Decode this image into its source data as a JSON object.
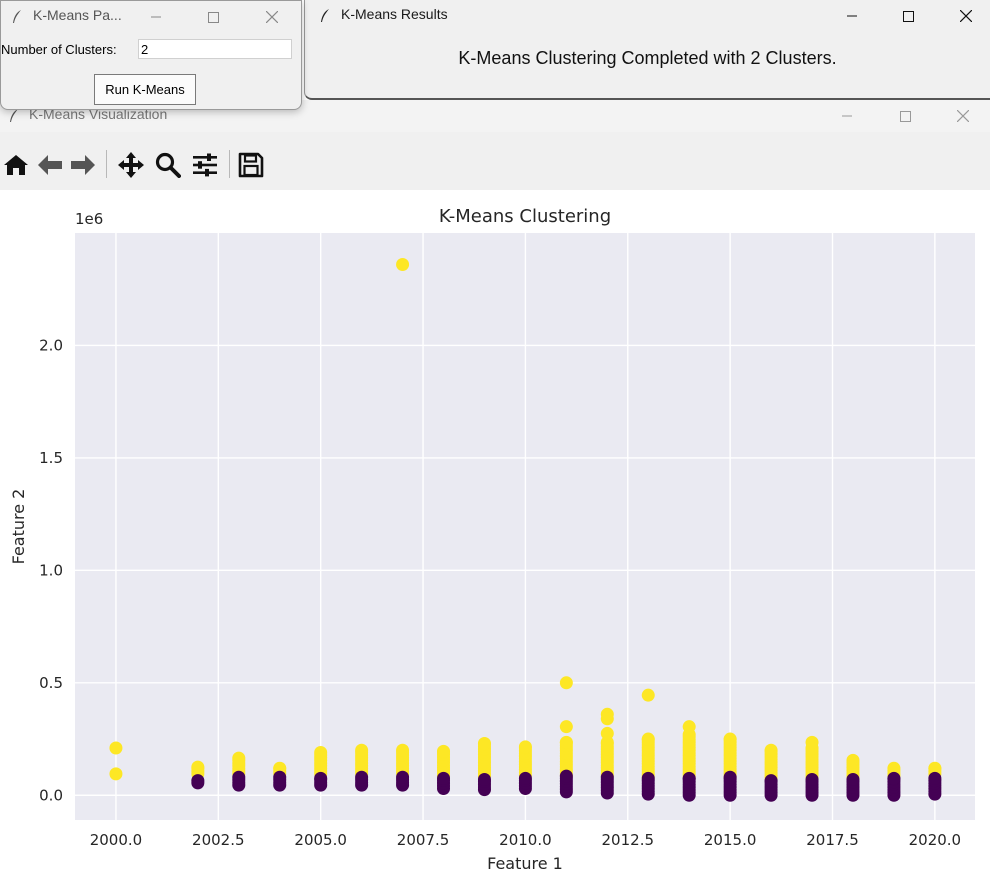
{
  "params_window": {
    "title": "K-Means Pa...",
    "clusters_label": "Number of Clusters:",
    "clusters_value": "2",
    "run_button": "Run K-Means"
  },
  "results_window": {
    "title": "K-Means Results",
    "message": "K-Means Clustering Completed with 2 Clusters."
  },
  "viz_window": {
    "title": "K-Means Visualization",
    "toolbar": [
      "home-icon",
      "back-icon",
      "forward-icon",
      "pan-icon",
      "zoom-icon",
      "configure-subplots-icon",
      "save-icon"
    ]
  },
  "chart_data": {
    "type": "scatter",
    "title": "K-Means Clustering",
    "xlabel": "Feature 1",
    "ylabel": "Feature 2",
    "offset_text": "1e6",
    "xlim": [
      1999.0,
      2020.98
    ],
    "ylim": [
      -0.11,
      2.5
    ],
    "y_scale_note": "values in units of 1e6",
    "xticks": [
      "2000.0",
      "2002.5",
      "2005.0",
      "2007.5",
      "2010.0",
      "2012.5",
      "2015.0",
      "2017.5",
      "2020.0"
    ],
    "yticks": [
      "0.0",
      "0.5",
      "1.0",
      "1.5",
      "2.0"
    ],
    "grid": true,
    "background": "#eaeaf2",
    "series": [
      {
        "color": "#fde725",
        "points": [
          {
            "x": 2000,
            "y": 0.21
          },
          {
            "x": 2000,
            "y": 0.095
          },
          {
            "x": 2007,
            "y": 2.36
          },
          {
            "x": 2011,
            "y": 0.5
          },
          {
            "x": 2011,
            "y": 0.305
          },
          {
            "x": 2012,
            "y": 0.36
          },
          {
            "x": 2012,
            "y": 0.34
          },
          {
            "x": 2012,
            "y": 0.275
          },
          {
            "x": 2013,
            "y": 0.445
          },
          {
            "x": 2014,
            "y": 0.305
          },
          {
            "x": 2017,
            "y": 0.235
          }
        ],
        "columns": [
          {
            "x": 2002,
            "y0": 0.095,
            "y1": 0.125
          },
          {
            "x": 2003,
            "y0": 0.095,
            "y1": 0.165
          },
          {
            "x": 2004,
            "y0": 0.095,
            "y1": 0.12
          },
          {
            "x": 2005,
            "y0": 0.095,
            "y1": 0.19
          },
          {
            "x": 2006,
            "y0": 0.095,
            "y1": 0.2
          },
          {
            "x": 2007,
            "y0": 0.095,
            "y1": 0.2
          },
          {
            "x": 2008,
            "y0": 0.085,
            "y1": 0.195
          },
          {
            "x": 2009,
            "y0": 0.085,
            "y1": 0.23
          },
          {
            "x": 2010,
            "y0": 0.09,
            "y1": 0.215
          },
          {
            "x": 2011,
            "y0": 0.09,
            "y1": 0.235
          },
          {
            "x": 2012,
            "y0": 0.085,
            "y1": 0.235
          },
          {
            "x": 2013,
            "y0": 0.08,
            "y1": 0.25
          },
          {
            "x": 2014,
            "y0": 0.08,
            "y1": 0.27
          },
          {
            "x": 2015,
            "y0": 0.08,
            "y1": 0.25
          },
          {
            "x": 2016,
            "y0": 0.075,
            "y1": 0.2
          },
          {
            "x": 2017,
            "y0": 0.075,
            "y1": 0.21
          },
          {
            "x": 2018,
            "y0": 0.075,
            "y1": 0.155
          },
          {
            "x": 2019,
            "y0": 0.085,
            "y1": 0.12
          },
          {
            "x": 2020,
            "y0": 0.095,
            "y1": 0.12
          }
        ]
      },
      {
        "color": "#440154",
        "points": [],
        "columns": [
          {
            "x": 2002,
            "y0": 0.055,
            "y1": 0.065
          },
          {
            "x": 2003,
            "y0": 0.045,
            "y1": 0.08
          },
          {
            "x": 2004,
            "y0": 0.045,
            "y1": 0.08
          },
          {
            "x": 2005,
            "y0": 0.045,
            "y1": 0.075
          },
          {
            "x": 2006,
            "y0": 0.045,
            "y1": 0.08
          },
          {
            "x": 2007,
            "y0": 0.045,
            "y1": 0.08
          },
          {
            "x": 2008,
            "y0": 0.03,
            "y1": 0.075
          },
          {
            "x": 2009,
            "y0": 0.025,
            "y1": 0.07
          },
          {
            "x": 2010,
            "y0": 0.03,
            "y1": 0.075
          },
          {
            "x": 2011,
            "y0": 0.015,
            "y1": 0.085
          },
          {
            "x": 2012,
            "y0": 0.01,
            "y1": 0.08
          },
          {
            "x": 2013,
            "y0": 0.005,
            "y1": 0.075
          },
          {
            "x": 2014,
            "y0": 0.0,
            "y1": 0.075
          },
          {
            "x": 2015,
            "y0": 0.0,
            "y1": 0.08
          },
          {
            "x": 2016,
            "y0": 0.0,
            "y1": 0.065
          },
          {
            "x": 2017,
            "y0": 0.0,
            "y1": 0.07
          },
          {
            "x": 2018,
            "y0": 0.0,
            "y1": 0.07
          },
          {
            "x": 2019,
            "y0": 0.0,
            "y1": 0.075
          },
          {
            "x": 2020,
            "y0": 0.005,
            "y1": 0.075
          }
        ]
      }
    ]
  }
}
